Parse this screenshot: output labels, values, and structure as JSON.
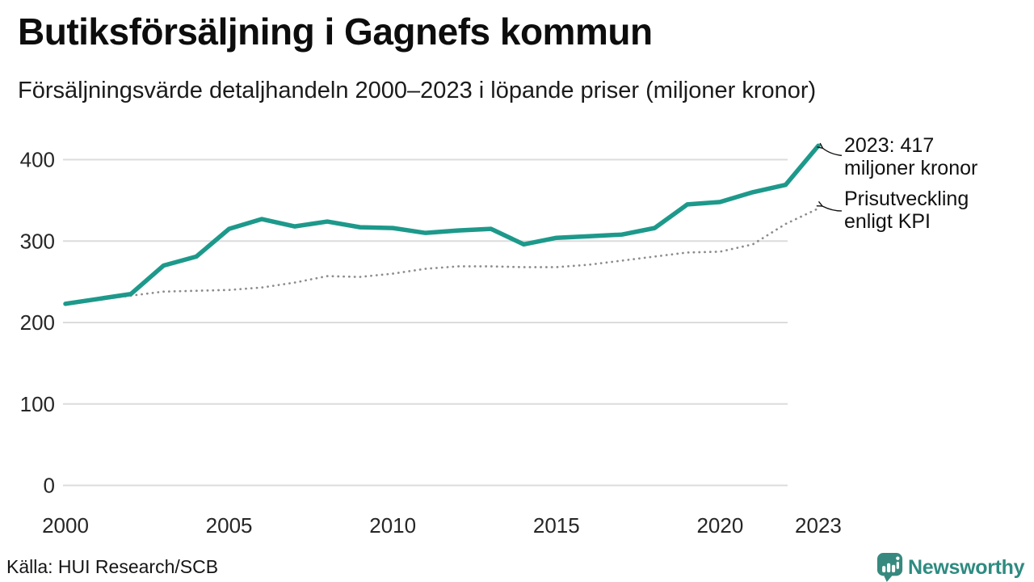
{
  "header": {
    "title": "Butiksförsäljning i Gagnefs kommun",
    "subtitle": "Försäljningsvärde detaljhandeln 2000–2023 i löpande priser (miljoner kronor)"
  },
  "chart_data": {
    "type": "line",
    "title": "Butiksförsäljning i Gagnefs kommun",
    "xlabel": "",
    "ylabel": "",
    "x": [
      2000,
      2001,
      2002,
      2003,
      2004,
      2005,
      2006,
      2007,
      2008,
      2009,
      2010,
      2011,
      2012,
      2013,
      2014,
      2015,
      2016,
      2017,
      2018,
      2019,
      2020,
      2021,
      2022,
      2023
    ],
    "series": [
      {
        "name": "Försäljningsvärde i löpande priser",
        "style": "solid",
        "color": "#1d998b",
        "values": [
          223,
          229,
          235,
          270,
          281,
          315,
          327,
          318,
          324,
          317,
          316,
          310,
          313,
          315,
          296,
          304,
          306,
          308,
          316,
          345,
          348,
          360,
          369,
          417
        ]
      },
      {
        "name": "Prisutveckling enligt KPI",
        "style": "dotted",
        "color": "#8c8c8c",
        "values": [
          223,
          228,
          233,
          238,
          239,
          240,
          243,
          249,
          257,
          256,
          260,
          266,
          269,
          269,
          268,
          268,
          271,
          276,
          281,
          286,
          287,
          296,
          321,
          340
        ]
      }
    ],
    "xticks": [
      2000,
      2005,
      2010,
      2015,
      2020,
      2023
    ],
    "yticks": [
      0,
      100,
      200,
      300,
      400
    ],
    "ylim": [
      0,
      440
    ],
    "grid": true,
    "legend_position": "annotations-right",
    "annotations": [
      {
        "id": "latest-value",
        "series": 0,
        "lines": [
          "2023: 417",
          "miljoner kronor"
        ]
      },
      {
        "id": "kpi-label",
        "series": 1,
        "lines": [
          "Prisutveckling",
          "enligt KPI"
        ]
      }
    ]
  },
  "footer": {
    "source": "Källa: HUI Research/SCB",
    "logo_text": "Newsworthy"
  },
  "colors": {
    "accent_line": "#1d998b",
    "kpi_dotted": "#8c8c8c",
    "grid": "#dcdcdc",
    "logo": "#37897f",
    "logo_text": "#2e8b80",
    "annotation_arrow": "#111111"
  }
}
